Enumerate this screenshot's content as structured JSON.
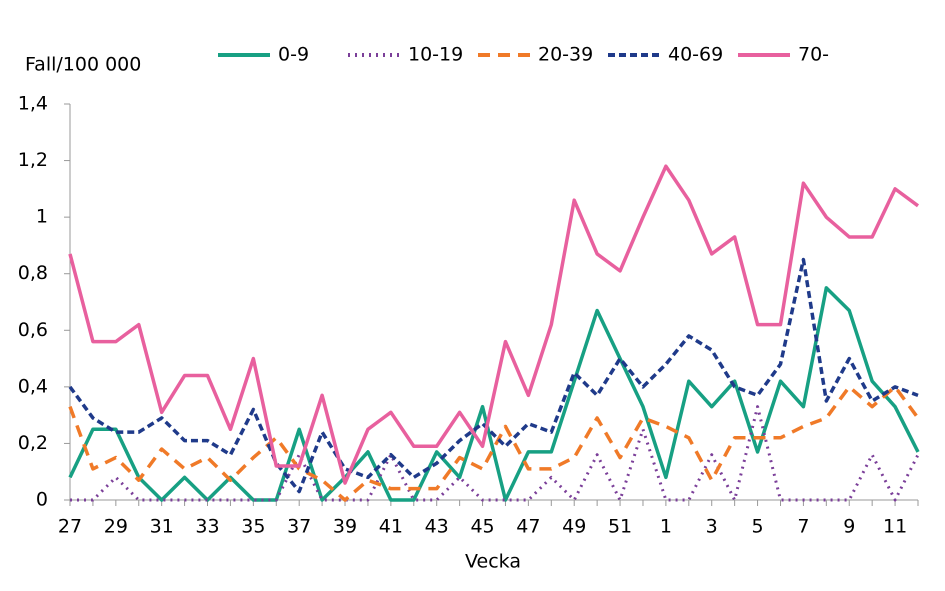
{
  "chart_data": {
    "type": "line",
    "y_label": "Fall/100 000",
    "x_label": "Vecka",
    "categories": [
      "27",
      null,
      "29",
      null,
      "31",
      null,
      "33",
      null,
      "35",
      null,
      "37",
      null,
      "39",
      null,
      "41",
      null,
      "43",
      null,
      "45",
      null,
      "47",
      null,
      "49",
      null,
      "51",
      null,
      "1",
      null,
      "3",
      null,
      "5",
      null,
      "7",
      null,
      "9",
      null,
      "11",
      null
    ],
    "ylim": [
      0,
      1.4
    ],
    "yticks": [
      0,
      {
        "value": 0.2,
        "label": "0,2"
      },
      {
        "value": 0.4,
        "label": "0,4"
      },
      {
        "value": 0.6,
        "label": "0,6"
      },
      {
        "value": 0.8,
        "label": "0,8"
      },
      1,
      {
        "value": 1.2,
        "label": "1,2"
      },
      {
        "value": 1.4,
        "label": "1,4"
      }
    ],
    "grid": false,
    "legend": "top",
    "series": [
      {
        "name": "0-9",
        "color": "#17a083",
        "dash": "solid",
        "values": [
          0.08,
          0.25,
          0.25,
          0.08,
          0,
          0.08,
          0,
          0.08,
          0,
          0,
          0.25,
          0,
          0.08,
          0.17,
          0,
          0,
          0.17,
          0.08,
          0.33,
          0,
          0.17,
          0.17,
          0.42,
          0.67,
          0.5,
          0.33,
          0.08,
          0.42,
          0.33,
          0.42,
          0.17,
          0.42,
          0.33,
          0.75,
          0.67,
          0.42,
          0.33,
          0.17
        ]
      },
      {
        "name": "10-19",
        "color": "#7b3f99",
        "dash": "dotted",
        "values": [
          0,
          0,
          0.08,
          0,
          0,
          0,
          0,
          0,
          0,
          0,
          0.16,
          0,
          0,
          0,
          0.16,
          0,
          0,
          0.08,
          0,
          0,
          0,
          0.08,
          0,
          0.16,
          0,
          0.25,
          0,
          0,
          0.16,
          0,
          0.33,
          0,
          0,
          0,
          0,
          0.16,
          0,
          0.16
        ]
      },
      {
        "name": "20-39",
        "color": "#f07a28",
        "dash": "dashed",
        "values": [
          0.33,
          0.11,
          0.15,
          0.07,
          0.18,
          0.11,
          0.15,
          0.07,
          0.15,
          0.22,
          0.11,
          0.07,
          0,
          0.07,
          0.04,
          0.04,
          0.04,
          0.15,
          0.11,
          0.26,
          0.11,
          0.11,
          0.15,
          0.29,
          0.15,
          0.29,
          0.26,
          0.22,
          0.07,
          0.22,
          0.22,
          0.22,
          0.26,
          0.29,
          0.4,
          0.33,
          0.4,
          0.29
        ]
      },
      {
        "name": "40-69",
        "color": "#1f3a8a",
        "dash": "short-dashed",
        "values": [
          0.4,
          0.29,
          0.24,
          0.24,
          0.29,
          0.21,
          0.21,
          0.16,
          0.32,
          0.13,
          0.03,
          0.24,
          0.11,
          0.08,
          0.16,
          0.08,
          0.13,
          0.21,
          0.27,
          0.19,
          0.27,
          0.24,
          0.45,
          0.37,
          0.5,
          0.4,
          0.48,
          0.58,
          0.53,
          0.4,
          0.37,
          0.48,
          0.85,
          0.35,
          0.5,
          0.35,
          0.4,
          0.37
        ]
      },
      {
        "name": "70-",
        "color": "#e8609e",
        "dash": "solid",
        "values": [
          0.87,
          0.56,
          0.56,
          0.62,
          0.31,
          0.44,
          0.44,
          0.25,
          0.5,
          0.12,
          0.12,
          0.37,
          0.06,
          0.25,
          0.31,
          0.19,
          0.19,
          0.31,
          0.19,
          0.56,
          0.37,
          0.62,
          1.06,
          0.87,
          0.81,
          1.0,
          1.18,
          1.06,
          0.87,
          0.93,
          0.62,
          0.62,
          1.12,
          1.0,
          0.93,
          0.93,
          1.1,
          1.04
        ]
      }
    ]
  }
}
